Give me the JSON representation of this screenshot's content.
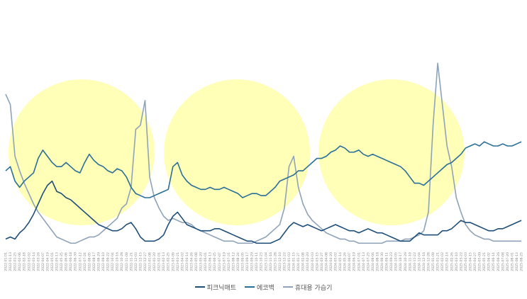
{
  "chart_data": {
    "type": "line",
    "title": "",
    "xlabel": "",
    "ylabel": "",
    "ylim": [
      0,
      100
    ],
    "x": [
      "2022-01-01",
      "2022-01-13",
      "2022-01-25",
      "2022-02-06",
      "2022-02-18",
      "2022-03-02",
      "2022-03-14",
      "2022-03-26",
      "2022-04-07",
      "2022-04-19",
      "2022-05-01",
      "2022-05-13",
      "2022-05-25",
      "2022-06-06",
      "2022-06-18",
      "2022-06-30",
      "2022-07-12",
      "2022-07-24",
      "2022-08-05",
      "2022-08-17",
      "2022-08-29",
      "2022-09-10",
      "2022-09-22",
      "2022-10-04",
      "2022-10-16",
      "2022-10-28",
      "2022-11-09",
      "2022-11-21",
      "2022-12-03",
      "2022-12-15",
      "2022-12-27",
      "2023-01-08",
      "2023-01-20",
      "2023-02-01",
      "2023-02-13",
      "2023-02-25",
      "2023-03-09",
      "2023-03-21",
      "2023-04-02",
      "2023-04-14",
      "2023-04-26",
      "2023-05-08",
      "2023-05-20",
      "2023-06-01",
      "2023-06-13",
      "2023-06-25",
      "2023-07-07",
      "2023-07-19",
      "2023-07-31",
      "2023-08-12",
      "2023-08-24",
      "2023-09-05",
      "2023-09-17",
      "2023-09-29",
      "2023-10-11",
      "2023-10-23",
      "2023-11-04",
      "2023-11-16",
      "2023-11-28",
      "2023-12-10",
      "2023-12-22",
      "2024-01-03",
      "2024-01-15",
      "2024-01-27",
      "2024-02-08",
      "2024-02-20",
      "2024-03-03",
      "2024-03-15",
      "2024-03-27",
      "2024-04-08",
      "2024-04-20",
      "2024-05-02",
      "2024-05-14",
      "2024-05-26",
      "2024-06-07",
      "2024-06-19",
      "2024-07-01",
      "2024-07-13",
      "2024-07-25",
      "2024-08-06",
      "2024-08-18",
      "2024-08-30",
      "2024-09-11",
      "2024-09-23",
      "2024-10-05",
      "2024-10-17",
      "2024-10-29",
      "2024-11-10",
      "2024-11-22",
      "2024-12-04",
      "2024-12-16",
      "2024-12-28",
      "2025-01-09",
      "2025-01-21",
      "2025-02-02",
      "2025-02-14",
      "2025-02-26",
      "2025-03-10",
      "2025-03-22",
      "2025-04-03",
      "2025-04-15",
      "2025-04-27",
      "2025-05-09",
      "2025-05-21",
      "2025-06-02",
      "2025-06-14",
      "2025-06-26",
      "2025-07-08",
      "2025-07-20",
      "2025-08-01",
      "2025-08-13",
      "2025-08-25"
    ],
    "series": [
      {
        "name": "피크닉매트",
        "color": "#1f4e79",
        "values": [
          5,
          6,
          5,
          8,
          10,
          13,
          17,
          22,
          27,
          31,
          33,
          28,
          27,
          25,
          24,
          22,
          20,
          18,
          16,
          14,
          12,
          11,
          10,
          9,
          9,
          10,
          12,
          13,
          10,
          6,
          4,
          4,
          4,
          5,
          7,
          12,
          16,
          18,
          15,
          12,
          11,
          10,
          9,
          9,
          9,
          10,
          10,
          9,
          8,
          7,
          6,
          5,
          4,
          4,
          3,
          3,
          3,
          3,
          4,
          5,
          8,
          11,
          13,
          12,
          11,
          12,
          11,
          10,
          9,
          10,
          11,
          12,
          11,
          10,
          9,
          9,
          8,
          9,
          10,
          9,
          8,
          8,
          7,
          6,
          5,
          4,
          4,
          4,
          6,
          8,
          7,
          7,
          7,
          7,
          9,
          9,
          10,
          12,
          14,
          13,
          13,
          12,
          11,
          10,
          9,
          9,
          10,
          10,
          11,
          12,
          13,
          14
        ]
      },
      {
        "name": "에코백",
        "color": "#2a6f97",
        "values": [
          38,
          40,
          33,
          30,
          33,
          35,
          37,
          44,
          48,
          45,
          42,
          40,
          40,
          42,
          40,
          38,
          37,
          42,
          46,
          43,
          41,
          40,
          38,
          37,
          39,
          38,
          35,
          30,
          27,
          26,
          25,
          25,
          26,
          27,
          28,
          29,
          40,
          42,
          36,
          33,
          31,
          30,
          29,
          29,
          30,
          29,
          29,
          30,
          29,
          28,
          27,
          25,
          26,
          27,
          27,
          26,
          26,
          28,
          30,
          33,
          34,
          35,
          36,
          38,
          38,
          40,
          42,
          44,
          44,
          45,
          47,
          48,
          50,
          49,
          47,
          47,
          48,
          46,
          45,
          46,
          45,
          44,
          43,
          42,
          41,
          40,
          38,
          35,
          32,
          32,
          31,
          33,
          35,
          37,
          39,
          41,
          42,
          44,
          46,
          49,
          50,
          51,
          50,
          52,
          51,
          50,
          50,
          51,
          50,
          50,
          51,
          52
        ]
      },
      {
        "name": "휴대용 가습기",
        "color": "#8fa3b8",
        "values": [
          75,
          70,
          45,
          38,
          32,
          27,
          22,
          18,
          15,
          12,
          9,
          6,
          5,
          4,
          3,
          3,
          4,
          5,
          6,
          6,
          7,
          9,
          11,
          13,
          15,
          20,
          22,
          30,
          58,
          60,
          72,
          35,
          25,
          20,
          16,
          14,
          15,
          14,
          13,
          13,
          12,
          10,
          9,
          8,
          7,
          6,
          5,
          4,
          4,
          4,
          3,
          3,
          3,
          3,
          4,
          5,
          6,
          8,
          10,
          12,
          20,
          40,
          45,
          30,
          22,
          17,
          14,
          12,
          10,
          8,
          7,
          6,
          5,
          5,
          4,
          4,
          3,
          3,
          3,
          3,
          3,
          3,
          4,
          4,
          4,
          4,
          5,
          5,
          6,
          7,
          9,
          18,
          60,
          90,
          70,
          50,
          40,
          25,
          18,
          12,
          9,
          7,
          6,
          5,
          5,
          4,
          4,
          4,
          4,
          4,
          4,
          4
        ]
      }
    ],
    "grid": false,
    "legend": "bottom"
  }
}
